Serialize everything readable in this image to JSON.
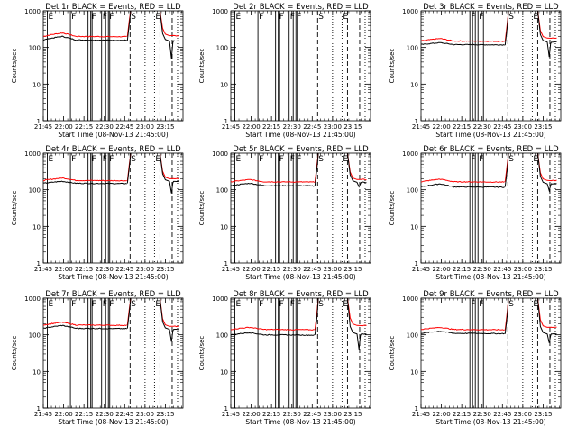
{
  "chart_data": {
    "type": "line",
    "scale": "log",
    "ylim": [
      1,
      1000
    ],
    "y_ticks": [
      "1",
      "10",
      "100",
      "1000"
    ],
    "x_ticks": [
      "21:45",
      "22:00",
      "22:15",
      "22:30",
      "22:45",
      "23:00",
      "23:15"
    ],
    "x_tick_minutes": [
      0,
      15,
      30,
      45,
      60,
      75,
      90
    ],
    "x_range_minutes": [
      0,
      103
    ],
    "xlabel": "Start Time (08-Nov-13 21:45:00)",
    "ylabel": "Counts/sec",
    "colors": {
      "events": "#000000",
      "lld": "#ff0000",
      "axes": "#000000"
    },
    "panels": [
      {
        "title": "Det 1r  BLACK = Events, RED = LLD",
        "events": {
          "base": 160,
          "hump": 200,
          "drop": 50,
          "recover": 150
        },
        "lld": {
          "base": 200,
          "hump": 250,
          "recover": 210
        },
        "marker_set": "full"
      },
      {
        "title": "Det 2r  BLACK = Events, RED = LLD",
        "events": null,
        "lld": null,
        "marker_set": "full"
      },
      {
        "title": "Det 3r  BLACK = Events, RED = LLD",
        "events": {
          "base": 120,
          "hump": 135,
          "drop": 55,
          "recover": 140
        },
        "lld": {
          "base": 150,
          "hump": 175,
          "recover": 180
        },
        "marker_set": "partial"
      },
      {
        "title": "Det 4r  BLACK = Events, RED = LLD",
        "events": {
          "base": 150,
          "hump": 170,
          "drop": 80,
          "recover": 170
        },
        "lld": {
          "base": 180,
          "hump": 210,
          "recover": 200
        },
        "marker_set": "full"
      },
      {
        "title": "Det 5r  BLACK = Events, RED = LLD",
        "events": {
          "base": 130,
          "hump": 150,
          "drop": 120,
          "recover": 160
        },
        "lld": {
          "base": 165,
          "hump": 190,
          "recover": 190
        },
        "marker_set": "full"
      },
      {
        "title": "Det 6r  BLACK = Events, RED = LLD",
        "events": {
          "base": 120,
          "hump": 145,
          "drop": 95,
          "recover": 145
        },
        "lld": {
          "base": 165,
          "hump": 195,
          "recover": 180
        },
        "marker_set": "partial"
      },
      {
        "title": "Det 7r  BLACK = Events, RED = LLD",
        "events": {
          "base": 150,
          "hump": 180,
          "drop": 65,
          "recover": 140
        },
        "lld": {
          "base": 185,
          "hump": 220,
          "recover": 170
        },
        "marker_set": "full"
      },
      {
        "title": "Det 8r  BLACK = Events, RED = LLD",
        "events": {
          "base": 100,
          "hump": 115,
          "drop": 40,
          "recover": 105
        },
        "lld": {
          "base": 140,
          "hump": 160,
          "recover": 180
        },
        "marker_set": "full"
      },
      {
        "title": "Det 9r  BLACK = Events, RED = LLD",
        "events": {
          "base": 110,
          "hump": 125,
          "drop": 60,
          "recover": 105
        },
        "lld": {
          "base": 140,
          "hump": 160,
          "recover": 160
        },
        "marker_set": "partial"
      }
    ],
    "marker_sets": {
      "full": {
        "solid": [
          3,
          20,
          33,
          35,
          36,
          43,
          46,
          48,
          49
        ],
        "dashed": [
          64,
          86,
          95
        ],
        "dotted": [
          75,
          82,
          99
        ],
        "labels": [
          {
            "text": "E",
            "at": 3
          },
          {
            "text": "F",
            "at": 20
          },
          {
            "text": "F",
            "at": 35
          },
          {
            "text": "F",
            "at": 43
          },
          {
            "text": "F",
            "at": 48
          },
          {
            "text": "S",
            "at": 64
          },
          {
            "text": "E",
            "at": 82
          }
        ]
      },
      "partial": {
        "solid": [
          36,
          38,
          40,
          42,
          46
        ],
        "dashed": [
          64,
          86,
          95
        ],
        "dotted": [
          75,
          82,
          99
        ],
        "labels": [
          {
            "text": "F",
            "at": 36
          },
          {
            "text": "F",
            "at": 42
          },
          {
            "text": "S",
            "at": 64
          },
          {
            "text": "E",
            "at": 82
          }
        ]
      }
    }
  }
}
